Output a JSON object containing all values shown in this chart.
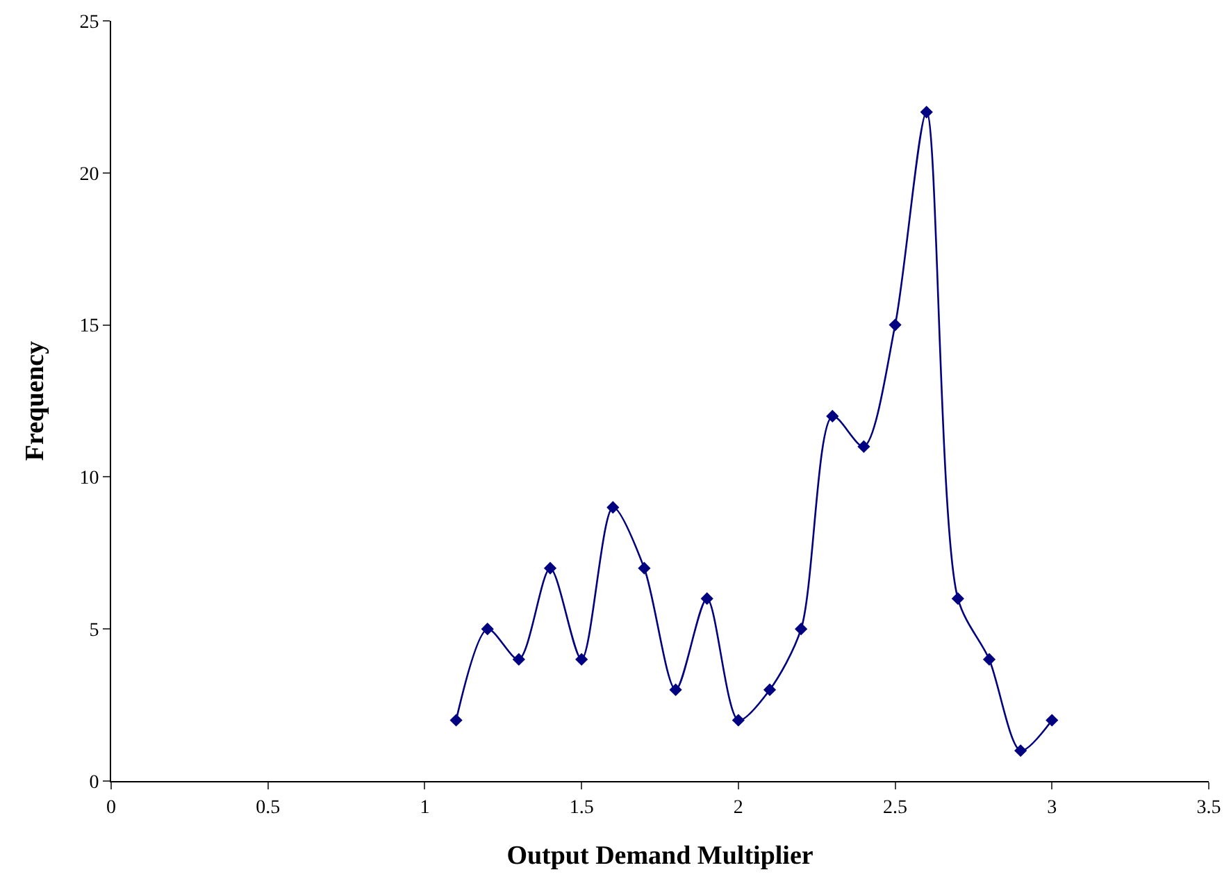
{
  "chart_data": {
    "type": "line",
    "xlabel": "Output Demand Multiplier",
    "ylabel": "Frequency",
    "x": [
      1.1,
      1.2,
      1.3,
      1.4,
      1.5,
      1.6,
      1.7,
      1.8,
      1.9,
      2.0,
      2.1,
      2.2,
      2.3,
      2.4,
      2.5,
      2.6,
      2.7,
      2.8,
      2.9,
      3.0
    ],
    "series": [
      {
        "color": "#000080",
        "values": [
          2,
          5,
          4,
          7,
          4,
          9,
          7,
          3,
          6,
          2,
          3,
          5,
          12,
          11,
          15,
          22,
          6,
          4,
          1,
          2
        ]
      }
    ],
    "xlim": [
      0,
      3.5
    ],
    "xticks": [
      0,
      0.5,
      1,
      1.5,
      2,
      2.5,
      3,
      3.5
    ],
    "ylim": [
      0,
      25
    ],
    "yticks": [
      0,
      5,
      10,
      15,
      20,
      25
    ],
    "grid": false,
    "marker": "diamond",
    "line_style": "solid"
  }
}
